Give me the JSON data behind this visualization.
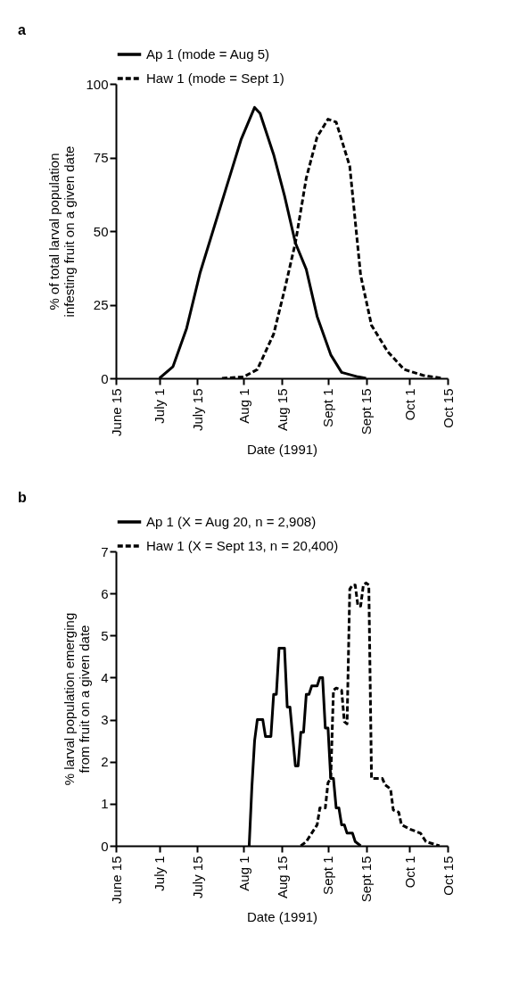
{
  "chart_data": [
    {
      "type": "line",
      "title": "a",
      "xlabel": "Date (1991)",
      "ylabel": "% of total larval population\ninfesting fruit on a given date",
      "xlim": [
        "1991-06-15",
        "1991-10-15"
      ],
      "xticks": [
        {
          "value": "1991-06-15",
          "label": "June 15"
        },
        {
          "value": "1991-07-01",
          "label": "July 1"
        },
        {
          "value": "1991-07-15",
          "label": "July 15"
        },
        {
          "value": "1991-08-01",
          "label": "Aug 1"
        },
        {
          "value": "1991-08-15",
          "label": "Aug 15"
        },
        {
          "value": "1991-09-01",
          "label": "Sept 1"
        },
        {
          "value": "1991-09-15",
          "label": "Sept 15"
        },
        {
          "value": "1991-10-01",
          "label": "Oct 1"
        },
        {
          "value": "1991-10-15",
          "label": "Oct 15"
        }
      ],
      "ylim": [
        0,
        100
      ],
      "yticks": [
        0,
        25,
        50,
        75,
        100
      ],
      "legend": "top left",
      "series": [
        {
          "name": "Ap 1 (mode = Aug 5)",
          "color": "#000000",
          "line_style": "solid",
          "x": [
            "1991-07-01",
            "1991-07-06",
            "1991-07-11",
            "1991-07-16",
            "1991-07-24",
            "1991-07-31",
            "1991-08-05",
            "1991-08-07",
            "1991-08-12",
            "1991-08-16",
            "1991-08-20",
            "1991-08-24",
            "1991-08-28",
            "1991-09-02",
            "1991-09-06",
            "1991-09-12",
            "1991-09-15"
          ],
          "values": [
            0,
            4,
            17,
            36,
            60,
            81,
            92,
            90,
            76,
            62,
            46,
            37,
            21,
            8,
            2,
            0.5,
            0
          ]
        },
        {
          "name": "Haw 1 (mode = Sept 1)",
          "color": "#000000",
          "line_style": "dashed",
          "x": [
            "1991-07-24",
            "1991-08-01",
            "1991-08-06",
            "1991-08-12",
            "1991-08-16",
            "1991-08-20",
            "1991-08-24",
            "1991-08-28",
            "1991-09-01",
            "1991-09-04",
            "1991-09-09",
            "1991-09-13",
            "1991-09-17",
            "1991-09-23",
            "1991-09-29",
            "1991-10-06",
            "1991-10-13"
          ],
          "values": [
            0,
            0.5,
            3,
            15,
            30,
            46,
            68,
            82,
            88,
            87,
            72,
            35,
            18,
            9,
            3,
            1,
            0
          ]
        }
      ]
    },
    {
      "type": "line",
      "title": "b",
      "xlabel": "Date (1991)",
      "ylabel": "% larval population emerging\nfrom fruit on a given date",
      "xlim": [
        "1991-06-15",
        "1991-10-15"
      ],
      "xticks": [
        {
          "value": "1991-06-15",
          "label": "June 15"
        },
        {
          "value": "1991-07-01",
          "label": "July 1"
        },
        {
          "value": "1991-07-15",
          "label": "July 15"
        },
        {
          "value": "1991-08-01",
          "label": "Aug 1"
        },
        {
          "value": "1991-08-15",
          "label": "Aug 15"
        },
        {
          "value": "1991-09-01",
          "label": "Sept 1"
        },
        {
          "value": "1991-09-15",
          "label": "Sept 15"
        },
        {
          "value": "1991-10-01",
          "label": "Oct 1"
        },
        {
          "value": "1991-10-15",
          "label": "Oct 15"
        }
      ],
      "ylim": [
        0,
        7
      ],
      "yticks": [
        0,
        1,
        2,
        3,
        4,
        5,
        6,
        7
      ],
      "legend": "top left",
      "series": [
        {
          "name": "Ap 1 (X = Aug 20, n = 2,908)",
          "color": "#000000",
          "line_style": "solid",
          "x": [
            "1991-08-03",
            "1991-08-04",
            "1991-08-05",
            "1991-08-06",
            "1991-08-08",
            "1991-08-09",
            "1991-08-11",
            "1991-08-12",
            "1991-08-13",
            "1991-08-14",
            "1991-08-16",
            "1991-08-17",
            "1991-08-18",
            "1991-08-20",
            "1991-08-21",
            "1991-08-22",
            "1991-08-23",
            "1991-08-24",
            "1991-08-25",
            "1991-08-26",
            "1991-08-28",
            "1991-08-29",
            "1991-08-30",
            "1991-08-31",
            "1991-09-01",
            "1991-09-02",
            "1991-09-03",
            "1991-09-04",
            "1991-09-05",
            "1991-09-06",
            "1991-09-07",
            "1991-09-08",
            "1991-09-10",
            "1991-09-11",
            "1991-09-13"
          ],
          "values": [
            0,
            1.4,
            2.5,
            3.0,
            3.0,
            2.6,
            2.6,
            3.6,
            3.6,
            4.7,
            4.7,
            3.3,
            3.3,
            1.9,
            1.9,
            2.7,
            2.7,
            3.6,
            3.6,
            3.8,
            3.8,
            4.0,
            4.0,
            2.8,
            2.8,
            1.6,
            1.6,
            0.9,
            0.9,
            0.5,
            0.5,
            0.3,
            0.3,
            0.1,
            0
          ]
        },
        {
          "name": "Haw 1 (X = Sept 13, n = 20,400)",
          "color": "#000000",
          "line_style": "dashed",
          "x": [
            "1991-08-22",
            "1991-08-24",
            "1991-08-26",
            "1991-08-28",
            "1991-08-29",
            "1991-08-31",
            "1991-09-01",
            "1991-09-02",
            "1991-09-03",
            "1991-09-04",
            "1991-09-06",
            "1991-09-07",
            "1991-09-08",
            "1991-09-09",
            "1991-09-10",
            "1991-09-11",
            "1991-09-12",
            "1991-09-13",
            "1991-09-14",
            "1991-09-15",
            "1991-09-16",
            "1991-09-17",
            "1991-09-21",
            "1991-09-22",
            "1991-09-24",
            "1991-09-25",
            "1991-09-27",
            "1991-09-28",
            "1991-10-01",
            "1991-10-05",
            "1991-10-07",
            "1991-10-12"
          ],
          "values": [
            0,
            0.1,
            0.3,
            0.5,
            0.9,
            0.9,
            1.5,
            1.6,
            3.7,
            3.75,
            3.7,
            2.95,
            2.9,
            6.1,
            6.2,
            6.2,
            5.7,
            5.7,
            6.2,
            6.25,
            6.2,
            1.6,
            1.6,
            1.45,
            1.35,
            0.85,
            0.8,
            0.5,
            0.4,
            0.3,
            0.1,
            0
          ]
        }
      ]
    }
  ]
}
